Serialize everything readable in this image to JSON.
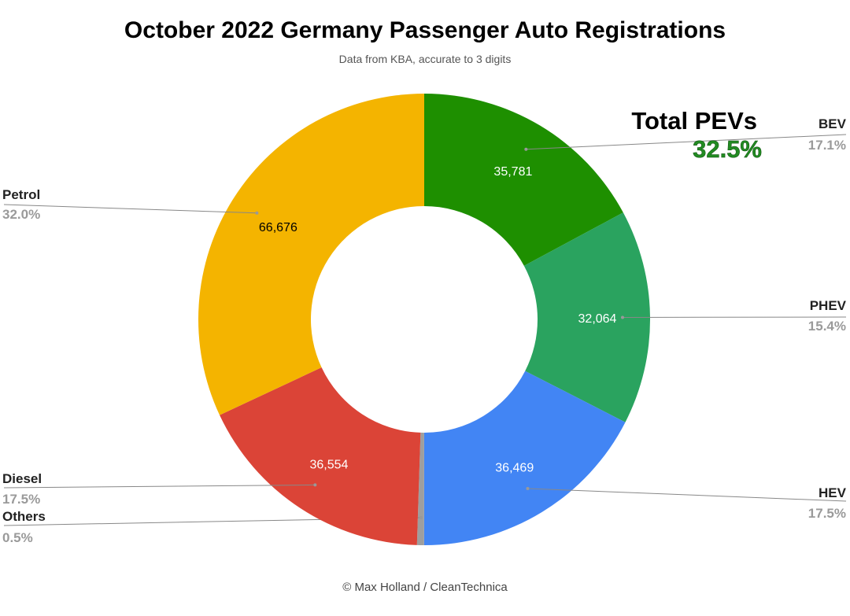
{
  "chart_data": {
    "type": "pie",
    "donut": true,
    "title": "October 2022 Germany Passenger Auto Registrations",
    "subtitle": "Data from KBA, accurate to 3 digits",
    "footer": "© Max Holland / CleanTechnica",
    "callout": {
      "label": "Total PEVs",
      "value": "32.5%",
      "color": "#228b22"
    },
    "slices": [
      {
        "name": "BEV",
        "value": 35781,
        "value_label": "35,781",
        "percent": "17.1%",
        "color": "#1e8f00",
        "value_color": "#ffffff"
      },
      {
        "name": "PHEV",
        "value": 32064,
        "value_label": "32,064",
        "percent": "15.4%",
        "color": "#2aa35f",
        "value_color": "#ffffff"
      },
      {
        "name": "HEV",
        "value": 36469,
        "value_label": "36,469",
        "percent": "17.5%",
        "color": "#4285f4",
        "value_color": "#ffffff"
      },
      {
        "name": "Others",
        "value": 1050,
        "value_label": "",
        "percent": "0.5%",
        "color": "#9e9e9e",
        "value_color": "#ffffff"
      },
      {
        "name": "Diesel",
        "value": 36554,
        "value_label": "36,554",
        "percent": "17.5%",
        "color": "#db4437",
        "value_color": "#ffffff"
      },
      {
        "name": "Petrol",
        "value": 66676,
        "value_label": "66,676",
        "percent": "32.0%",
        "color": "#f4b400",
        "value_color": "#000000"
      }
    ],
    "legend": "outside labels with leader lines"
  }
}
